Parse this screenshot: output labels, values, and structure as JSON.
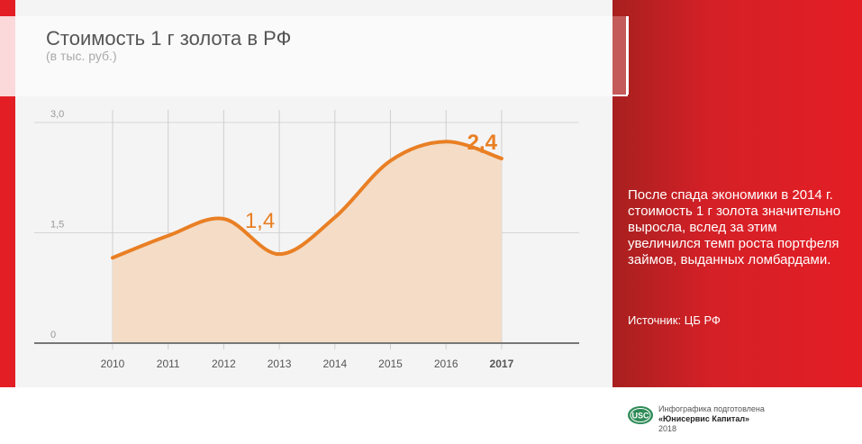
{
  "title": "Стоимость 1 г золота в РФ",
  "subtitle": "(в тыс. руб.)",
  "note": "После спада экономики в 2014 г. стоимость 1 г золота значительно выросла, вслед за этим увеличился темп роста портфеля займов, выданных ломбардами.",
  "source": "Источник: ЦБ РФ",
  "credit": {
    "line1": "Инфографика подготовлена",
    "line2": "«Юнисервис Капитал»",
    "line3": "2018",
    "logo_text": "USC"
  },
  "colors": {
    "accent": "#e31e24",
    "line": "#e97f24",
    "fill": "#f4dcc6"
  },
  "chart_data": {
    "type": "area",
    "x": [
      "2010",
      "2011",
      "2012",
      "2013",
      "2014",
      "2015",
      "2016",
      "2017"
    ],
    "values": [
      1.16,
      1.46,
      1.69,
      1.21,
      1.71,
      2.48,
      2.74,
      2.51
    ],
    "ylim": [
      0,
      3.0
    ],
    "yticks": [
      "0",
      "1,5",
      "3,0"
    ],
    "ytick_values": [
      0,
      1.5,
      3.0
    ],
    "grid": true,
    "annotations": [
      {
        "x": 2012.65,
        "label": "1,4"
      },
      {
        "x": 2016.65,
        "label": "2,4"
      }
    ]
  }
}
